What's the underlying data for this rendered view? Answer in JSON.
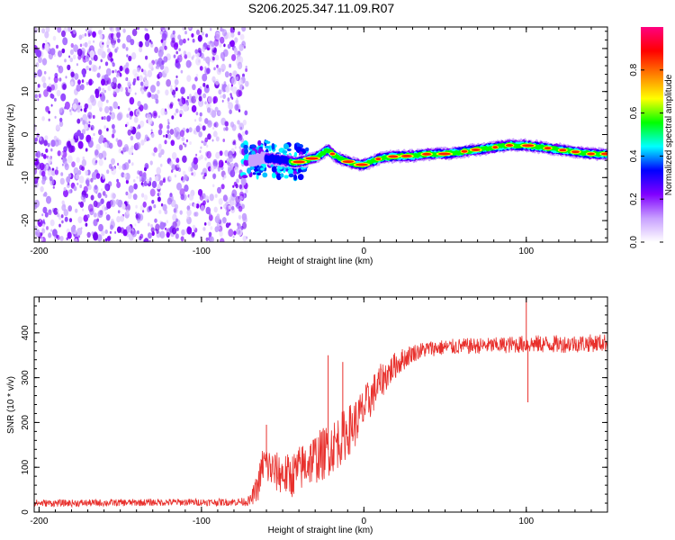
{
  "title": "S206.2025.347.11.09.R07",
  "chart_data": [
    {
      "type": "heatmap",
      "title": "S206.2025.347.11.09.R07",
      "xlabel": "Height of straight line (km)",
      "ylabel": "Frequency (Hz)",
      "xlim": [
        -203,
        150
      ],
      "ylim": [
        -25,
        25
      ],
      "x_ticks": [
        -200,
        -100,
        0,
        100
      ],
      "x_tick_labels": [
        "-200",
        "-100",
        "0",
        "100"
      ],
      "y_ticks": [
        -20,
        -10,
        0,
        10,
        20
      ],
      "y_tick_labels": [
        "-20",
        "-10",
        "0",
        "10",
        "20"
      ],
      "noise_region_x": [
        -203,
        -72
      ],
      "signal_track": {
        "x": [
          -72,
          -60,
          -50,
          -42,
          -35,
          -28,
          -22,
          -18,
          -12,
          -8,
          -4,
          0,
          10,
          20,
          30,
          40,
          50,
          60,
          70,
          80,
          90,
          100,
          110,
          120,
          130,
          140,
          150
        ],
        "freq": [
          -6,
          -5.5,
          -6,
          -6.5,
          -6,
          -5,
          -3.5,
          -5,
          -6,
          -6.5,
          -7,
          -7,
          -5.5,
          -5,
          -5,
          -4.5,
          -4.5,
          -4,
          -3.5,
          -3,
          -2.5,
          -2.5,
          -3,
          -3.5,
          -4,
          -4.5,
          -4.5
        ]
      },
      "colorbar": {
        "label": "Normalized spectral amplitude",
        "range": [
          0,
          1
        ],
        "ticks": [
          0.0,
          0.2,
          0.4,
          0.6,
          0.8
        ],
        "tick_labels": [
          "0.0",
          "0.2",
          "0.4",
          "0.6",
          "0.8"
        ],
        "colors": [
          "#ffffff",
          "#c8a0ff",
          "#8000ff",
          "#0000ff",
          "#00ffff",
          "#00ff00",
          "#ffff00",
          "#ff8000",
          "#ff0000",
          "#ff0080"
        ]
      }
    },
    {
      "type": "line",
      "xlabel": "Height of straight line (km)",
      "ylabel": "SNR (10 * v/v)",
      "xlim": [
        -203,
        150
      ],
      "ylim": [
        0,
        480
      ],
      "x_ticks": [
        -200,
        -100,
        0,
        100
      ],
      "x_tick_labels": [
        "-200",
        "-100",
        "0",
        "100"
      ],
      "y_ticks": [
        0,
        100,
        200,
        300,
        400
      ],
      "y_tick_labels": [
        "0",
        "100",
        "200",
        "300",
        "400"
      ],
      "series": [
        {
          "name": "SNR",
          "color": "#e8302c",
          "x": [
            -203,
            -180,
            -150,
            -120,
            -90,
            -75,
            -70,
            -65,
            -62,
            -55,
            -45,
            -35,
            -25,
            -15,
            -5,
            0,
            10,
            20,
            30,
            40,
            60,
            80,
            100,
            120,
            150
          ],
          "y": [
            20,
            20,
            21,
            22,
            22,
            23,
            25,
            60,
            110,
            90,
            80,
            110,
            130,
            160,
            200,
            230,
            290,
            330,
            355,
            365,
            370,
            372,
            375,
            375,
            378
          ],
          "noise_amp": [
            8,
            8,
            8,
            8,
            8,
            9,
            12,
            35,
            45,
            45,
            50,
            55,
            60,
            60,
            55,
            50,
            40,
            30,
            20,
            18,
            18,
            18,
            20,
            20,
            20
          ],
          "spikes": [
            {
              "x": -60,
              "y": 195
            },
            {
              "x": -22,
              "y": 350
            },
            {
              "x": -13,
              "y": 335
            },
            {
              "x": 100,
              "y": 475
            },
            {
              "x": 101,
              "y": 245
            }
          ]
        }
      ]
    }
  ]
}
